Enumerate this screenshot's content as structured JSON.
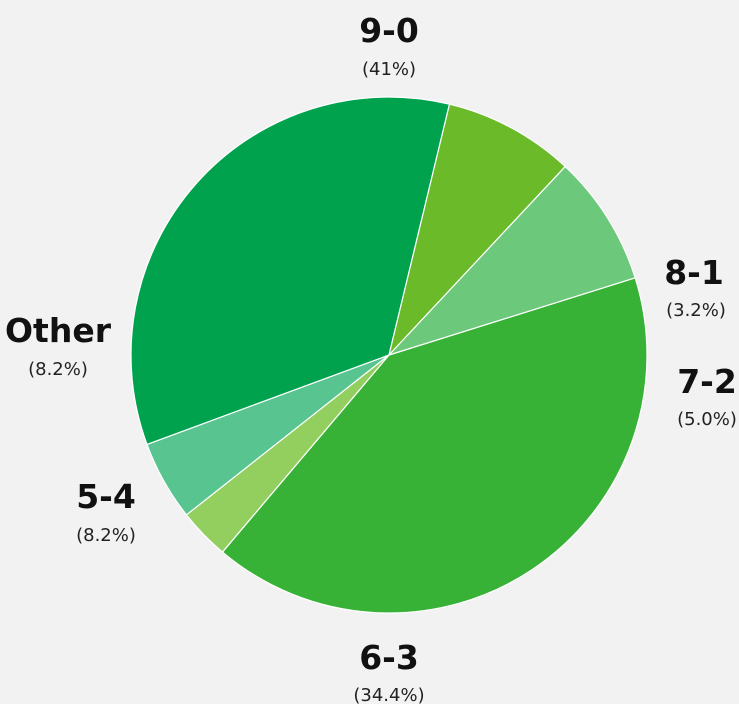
{
  "chart_data": {
    "type": "pie",
    "title": "",
    "slices": [
      {
        "label": "9-0",
        "value": 41.0,
        "pct_label": "(41%)",
        "color": "#38b236"
      },
      {
        "label": "8-1",
        "value": 3.2,
        "pct_label": "(3.2%)",
        "color": "#92cf5f"
      },
      {
        "label": "7-2",
        "value": 5.0,
        "pct_label": "(5.0%)",
        "color": "#58c590"
      },
      {
        "label": "6-3",
        "value": 34.4,
        "pct_label": "(34.4%)",
        "color": "#00a24e"
      },
      {
        "label": "5-4",
        "value": 8.2,
        "pct_label": "(8.2%)",
        "color": "#6aba2a"
      },
      {
        "label": "Other",
        "value": 8.2,
        "pct_label": "(8.2%)",
        "color": "#6cc97c"
      }
    ]
  }
}
